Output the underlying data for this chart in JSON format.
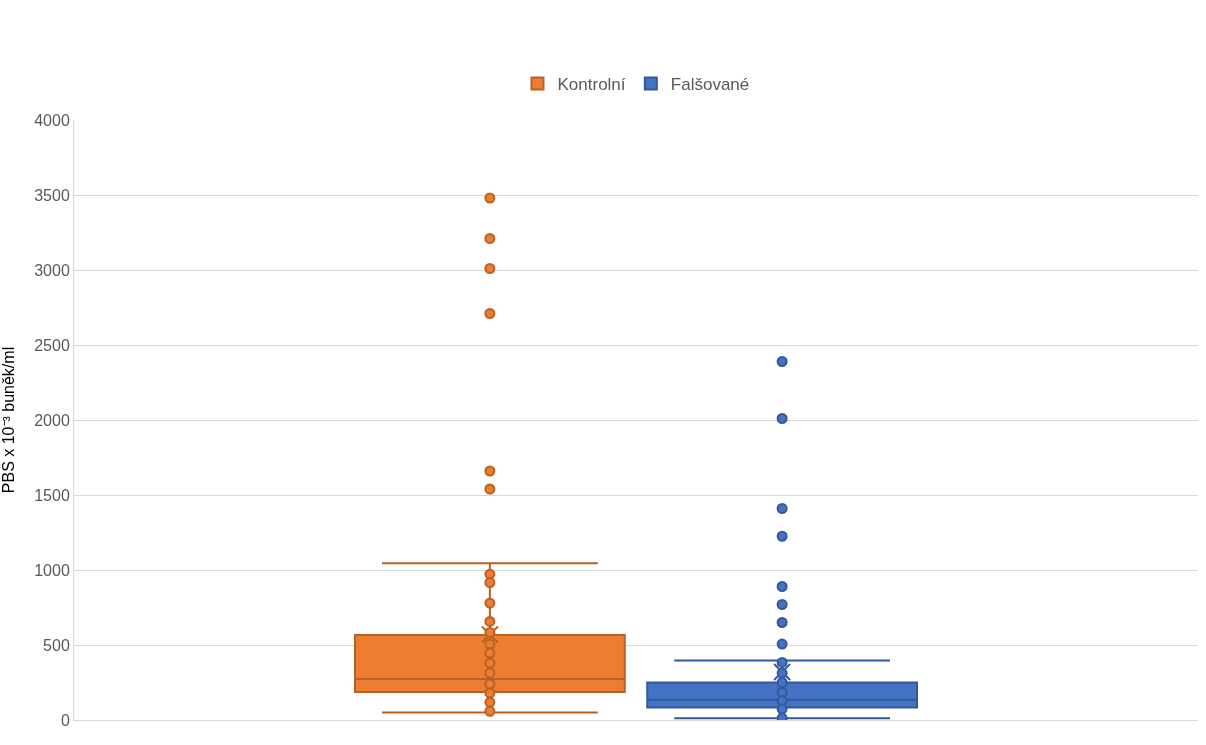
{
  "chart_data": {
    "type": "box",
    "ylabel": "PBS x 10⁻³ buněk/ml",
    "categories": [
      null
    ],
    "ylim": [
      0,
      4000
    ],
    "yticks": [
      0,
      500,
      1000,
      1500,
      2000,
      2500,
      3000,
      3500,
      4000
    ],
    "grid": "y",
    "legend": "top",
    "tick_labels": "y",
    "series": [
      {
        "name": "Kontrolní",
        "color": "#ed7d31",
        "boxes": [
          {
            "low": 50,
            "q1": 186,
            "median": 273,
            "q3": 566,
            "high": 1045,
            "mean": 570,
            "outliers": [
              3480,
              3210,
              3010,
              2710,
              1660,
              1540,
              972,
              916,
              779,
              657,
              584,
              506,
              446,
              379,
              313,
              240,
              180,
              118,
              58
            ]
          }
        ]
      },
      {
        "name": "Falšované",
        "color": "#4472c4",
        "boxes": [
          {
            "low": 11,
            "q1": 84,
            "median": 135,
            "q3": 250,
            "high": 397,
            "mean": 320,
            "outliers": [
              2390,
              2010,
              1410,
              1225,
              890,
              770,
              650,
              506,
              384,
              313,
              250,
              184,
              128,
              73,
              13
            ]
          }
        ]
      }
    ]
  }
}
